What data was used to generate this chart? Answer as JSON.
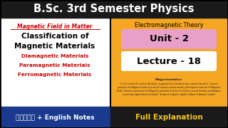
{
  "bg_color": "#ffffff",
  "header_text": "B.Sc. 3rd Semester Physics",
  "header_bg": "#1a1a1a",
  "header_color": "#ffffff",
  "left_bg": "#ffffff",
  "right_bg": "#f5a623",
  "magnetic_field_text": "Magnetic Field in Matter",
  "magnetic_field_color": "#cc0000",
  "classification_text": "Classification of\nMagnetic Materials",
  "classification_color": "#000000",
  "bullet1": "Diamagnetic Materials",
  "bullet2": "Paramagnetic Materials",
  "bullet3": "Ferromagnetic Materials",
  "bullet_color": "#cc0000",
  "em_theory_text": "Electromagnetic Theory",
  "em_theory_color": "#000000",
  "unit_text": "Unit - 2",
  "unit_bg": "#e8a0c8",
  "lecture_text": "Lecture - 18",
  "lecture_bg": "#ffffff",
  "bottom_left_bg": "#1a3a8f",
  "bottom_left_text": "हिंदी + English Notes",
  "bottom_left_color": "#ffffff",
  "bottom_right_bg": "#1a1a1a",
  "bottom_right_text": "Full Explanation",
  "bottom_right_color": "#f5c518",
  "divider_color": "#000000",
  "small_text_lines": [
    "Magnetostatics",
    "In it is current K, current densities, magnetic force between two current elements. Current",
    "provision for Magnetic field in terms of volume current density (divergence and curl of Magnetic",
    "field). General expression for Magnetic potential in terms of volume current density and Ampere",
    "scalar law (applications included). Study of magnetic dipole (Gilbert & Ampere model)"
  ]
}
